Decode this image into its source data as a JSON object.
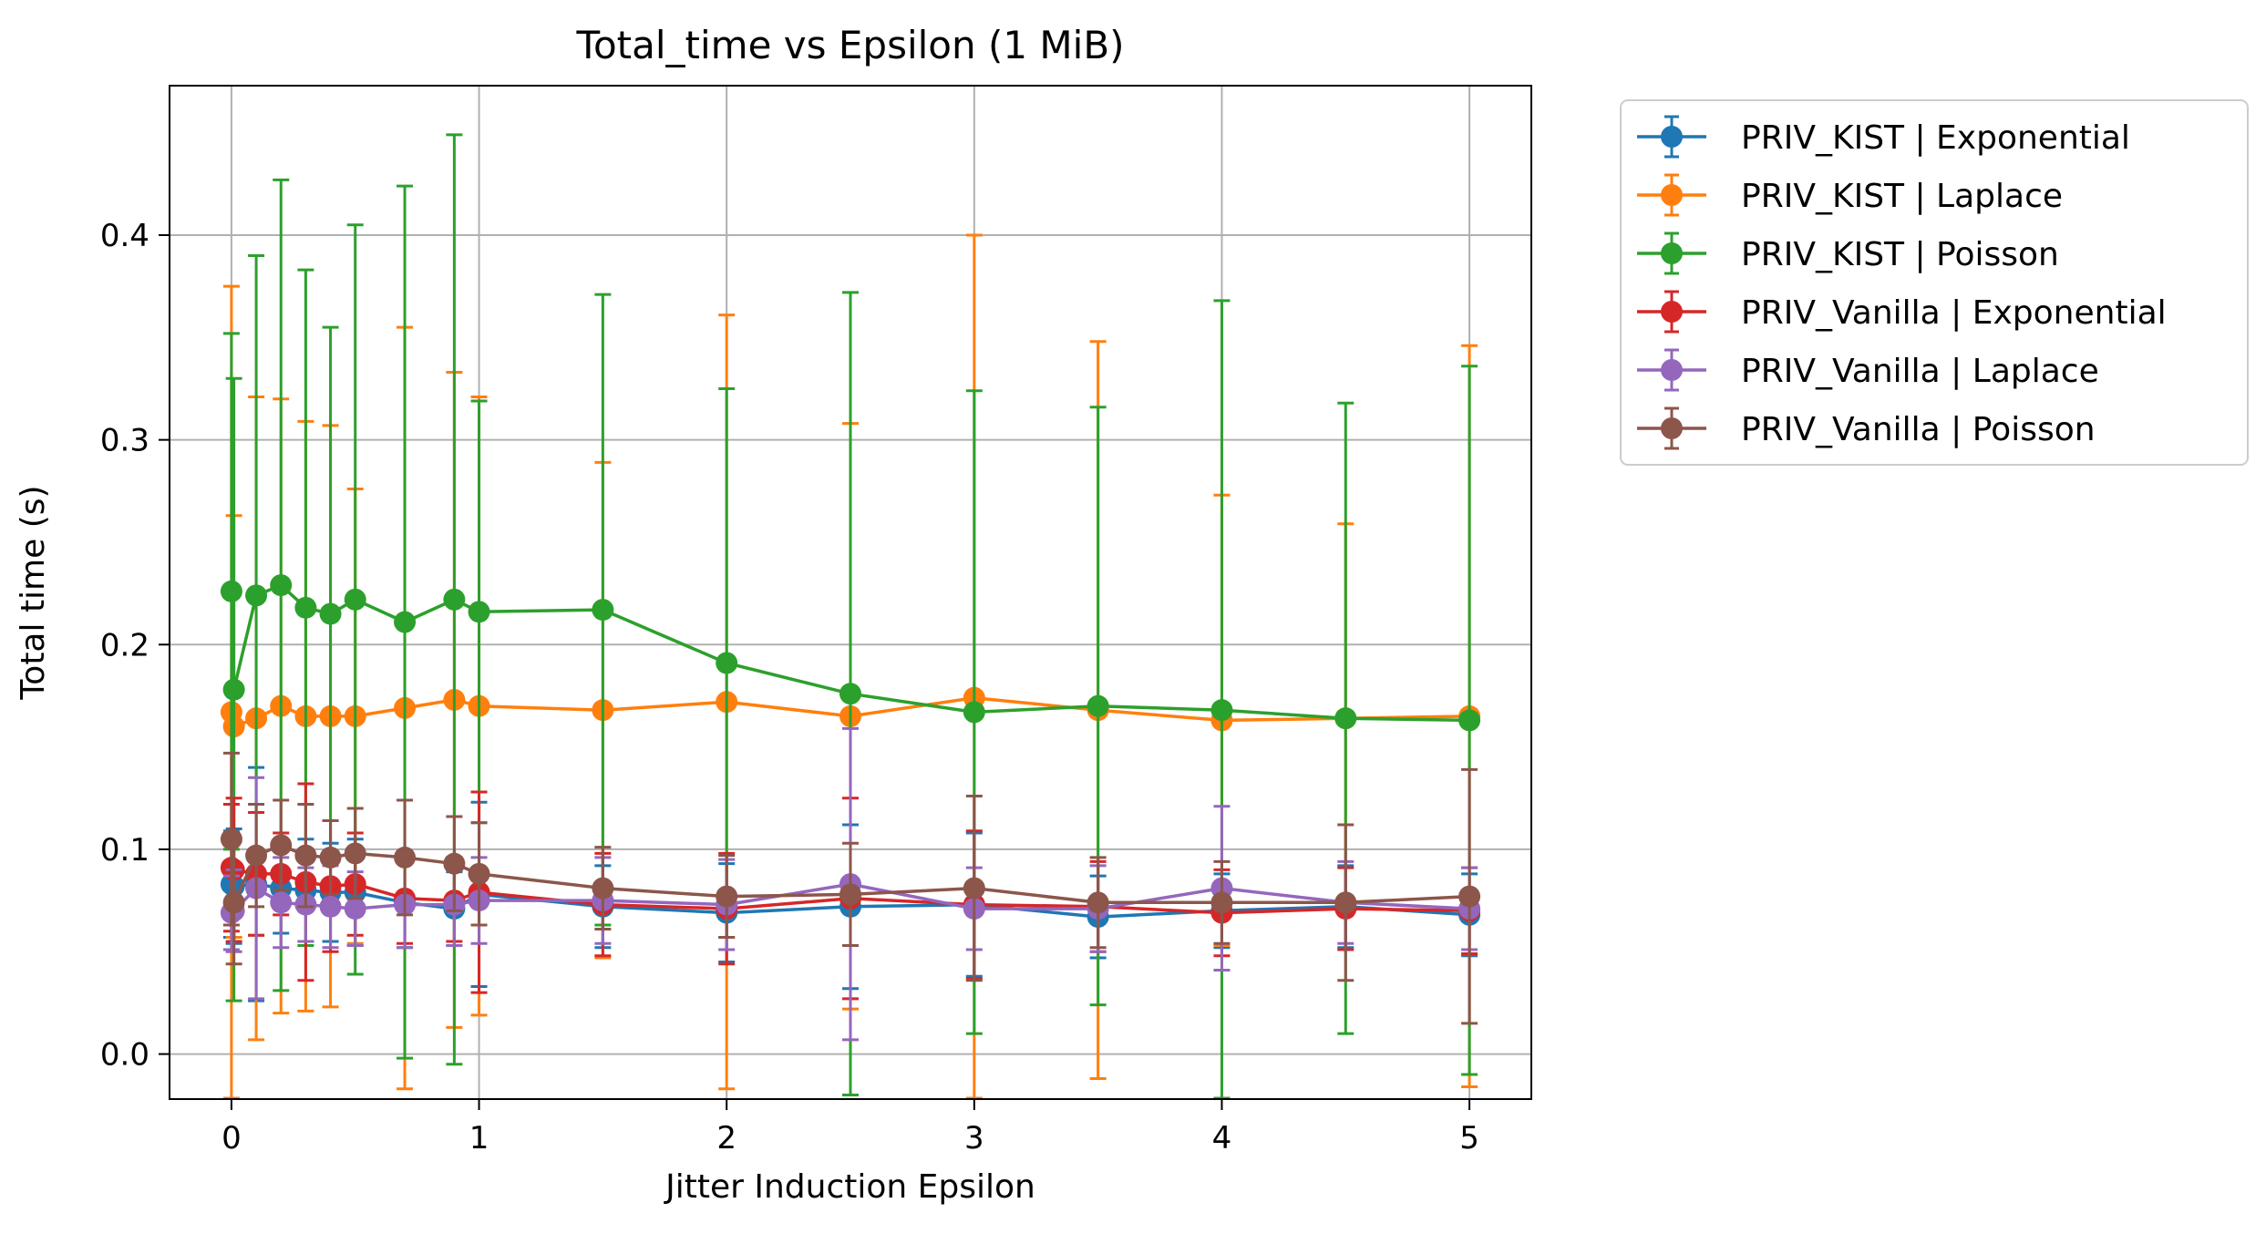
{
  "chart_data": {
    "type": "line",
    "title": "Total_time vs Epsilon (1 MiB)",
    "xlabel": "Jitter Induction Epsilon",
    "ylabel": "Total time (s)",
    "xlim": [
      -0.25,
      5.25
    ],
    "ylim": [
      -0.022,
      0.473
    ],
    "xticks": [
      0,
      1,
      2,
      3,
      4,
      5
    ],
    "xtick_labels": [
      "0",
      "1",
      "2",
      "3",
      "4",
      "5"
    ],
    "yticks": [
      0.0,
      0.1,
      0.2,
      0.3,
      0.4
    ],
    "ytick_labels": [
      "0.0",
      "0.1",
      "0.2",
      "0.3",
      "0.4"
    ],
    "grid": true,
    "legend_position": "outside-right-top",
    "error_bars": true,
    "x": [
      0,
      0.01,
      0.1,
      0.2,
      0.3,
      0.4,
      0.5,
      0.7,
      0.9,
      1,
      1.5,
      2,
      2.5,
      3,
      3.5,
      4,
      4.5,
      5
    ],
    "series": [
      {
        "name": "PRIV_KIST | Exponential",
        "color": "#1f77b4",
        "values": [
          0.083,
          0.082,
          0.083,
          0.081,
          0.08,
          0.079,
          0.079,
          0.074,
          0.071,
          0.078,
          0.072,
          0.069,
          0.072,
          0.073,
          0.067,
          0.07,
          0.072,
          0.068
        ],
        "yerr": [
          0.026,
          0.028,
          0.057,
          0.022,
          0.025,
          0.024,
          0.026,
          0.022,
          0.018,
          0.045,
          0.02,
          0.024,
          0.04,
          0.035,
          0.02,
          0.018,
          0.02,
          0.02
        ]
      },
      {
        "name": "PRIV_KIST | Laplace",
        "color": "#ff7f0e",
        "values": [
          0.167,
          0.16,
          0.164,
          0.17,
          0.165,
          0.165,
          0.165,
          0.169,
          0.173,
          0.17,
          0.168,
          0.172,
          0.165,
          0.174,
          0.168,
          0.163,
          0.164,
          0.165
        ],
        "yerr": [
          0.208,
          0.103,
          0.157,
          0.15,
          0.144,
          0.142,
          0.111,
          0.186,
          0.16,
          0.151,
          0.121,
          0.189,
          0.143,
          0.226,
          0.18,
          0.11,
          0.095,
          0.181
        ]
      },
      {
        "name": "PRIV_KIST | Poisson",
        "color": "#2ca02c",
        "values": [
          0.226,
          0.178,
          0.224,
          0.229,
          0.218,
          0.215,
          0.222,
          0.211,
          0.222,
          0.216,
          0.217,
          0.191,
          0.176,
          0.167,
          0.17,
          0.168,
          0.164,
          0.163
        ],
        "yerr": [
          0.126,
          0.152,
          0.166,
          0.198,
          0.165,
          0.14,
          0.183,
          0.213,
          0.227,
          0.103,
          0.154,
          0.134,
          0.196,
          0.157,
          0.146,
          0.2,
          0.154,
          0.173
        ]
      },
      {
        "name": "PRIV_Vanilla | Exponential",
        "color": "#d62728",
        "values": [
          0.091,
          0.09,
          0.088,
          0.088,
          0.084,
          0.082,
          0.083,
          0.076,
          0.075,
          0.079,
          0.073,
          0.071,
          0.076,
          0.073,
          0.072,
          0.069,
          0.071,
          0.07
        ],
        "yerr": [
          0.031,
          0.035,
          0.03,
          0.02,
          0.048,
          0.032,
          0.025,
          0.022,
          0.02,
          0.049,
          0.025,
          0.027,
          0.049,
          0.036,
          0.022,
          0.021,
          0.02,
          0.021
        ]
      },
      {
        "name": "PRIV_Vanilla | Laplace",
        "color": "#9467bd",
        "values": [
          0.069,
          0.07,
          0.081,
          0.074,
          0.073,
          0.072,
          0.071,
          0.073,
          0.073,
          0.075,
          0.075,
          0.073,
          0.083,
          0.071,
          0.071,
          0.081,
          0.074,
          0.071
        ],
        "yerr": [
          0.018,
          0.02,
          0.054,
          0.022,
          0.018,
          0.02,
          0.018,
          0.021,
          0.02,
          0.021,
          0.021,
          0.022,
          0.076,
          0.02,
          0.021,
          0.04,
          0.02,
          0.02
        ]
      },
      {
        "name": "PRIV_Vanilla | Poisson",
        "color": "#8c564b",
        "values": [
          0.105,
          0.074,
          0.097,
          0.102,
          0.097,
          0.096,
          0.098,
          0.096,
          0.093,
          0.088,
          0.081,
          0.077,
          0.078,
          0.081,
          0.074,
          0.074,
          0.074,
          0.077
        ],
        "yerr": [
          0.042,
          0.03,
          0.025,
          0.022,
          0.025,
          0.018,
          0.022,
          0.028,
          0.023,
          0.025,
          0.02,
          0.02,
          0.025,
          0.045,
          0.022,
          0.02,
          0.038,
          0.062
        ]
      }
    ]
  }
}
